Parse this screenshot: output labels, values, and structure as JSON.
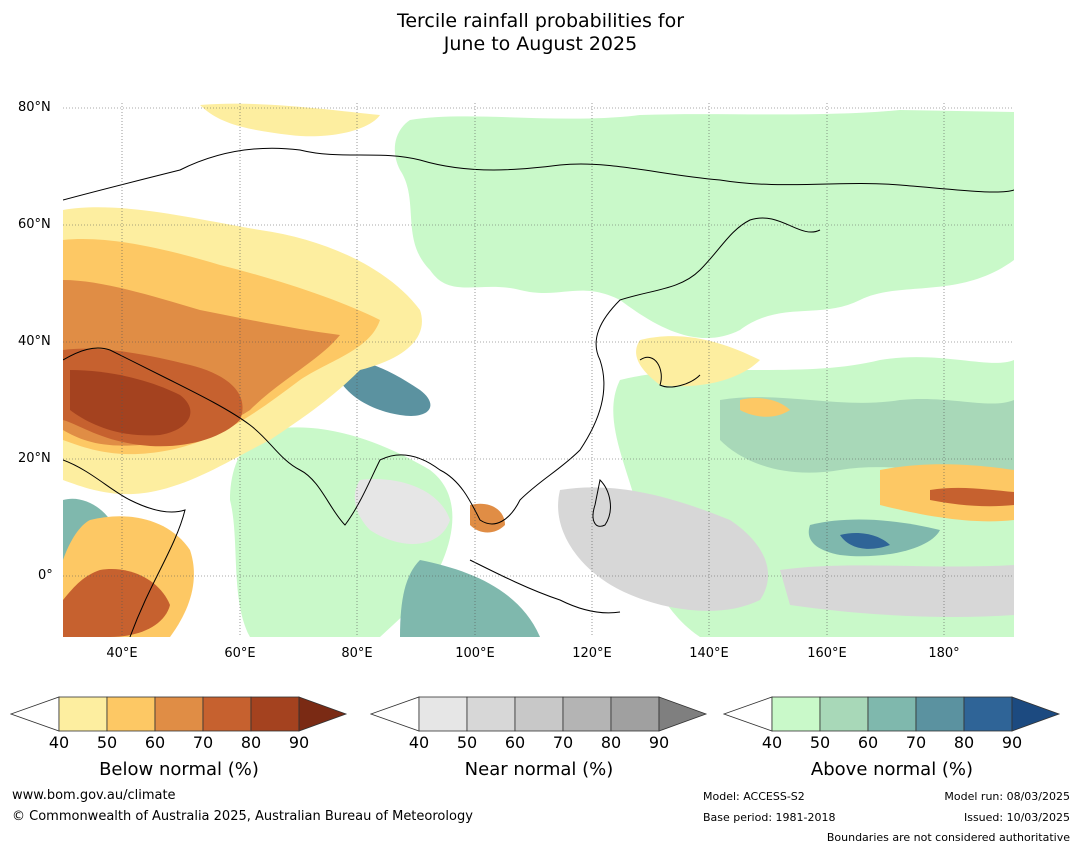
{
  "title": {
    "line1": "Tercile rainfall probabilities for",
    "line2": "June to August 2025"
  },
  "map": {
    "lat_labels": [
      "80°N",
      "60°N",
      "40°N",
      "20°N",
      "0°"
    ],
    "lon_labels": [
      "40°E",
      "60°E",
      "80°E",
      "100°E",
      "120°E",
      "140°E",
      "160°E",
      "180°"
    ],
    "extent": {
      "lon_min": 30,
      "lon_max": 192,
      "lat_min": -10,
      "lat_max": 81
    }
  },
  "legends": [
    {
      "title": "Below normal (%)",
      "ticks": [
        "40",
        "50",
        "60",
        "70",
        "80",
        "90"
      ],
      "colors": [
        "#fdeea0",
        "#fdc864",
        "#e08d45",
        "#c6612f",
        "#a4421f",
        "#7a2a14"
      ]
    },
    {
      "title": "Near normal (%)",
      "ticks": [
        "40",
        "50",
        "60",
        "70",
        "80",
        "90"
      ],
      "colors": [
        "#e6e6e6",
        "#d7d7d7",
        "#c8c8c8",
        "#b4b4b4",
        "#a0a0a0",
        "#7f7f7f"
      ]
    },
    {
      "title": "Above normal (%)",
      "ticks": [
        "40",
        "50",
        "60",
        "70",
        "80",
        "90"
      ],
      "colors": [
        "#c9f9c9",
        "#a8d8b8",
        "#7fb8ad",
        "#5b92a0",
        "#2f6497",
        "#1c4a80"
      ]
    }
  ],
  "footer": {
    "website": "www.bom.gov.au/climate",
    "copyright": "© Commonwealth of Australia 2025, Australian Bureau of Meteorology",
    "model": "Model: ACCESS-S2",
    "base_period": "Base period: 1981-2018",
    "model_run": "Model run: 08/03/2025",
    "issued": "Issued: 10/03/2025",
    "boundaries": "Boundaries are not considered authoritative"
  }
}
